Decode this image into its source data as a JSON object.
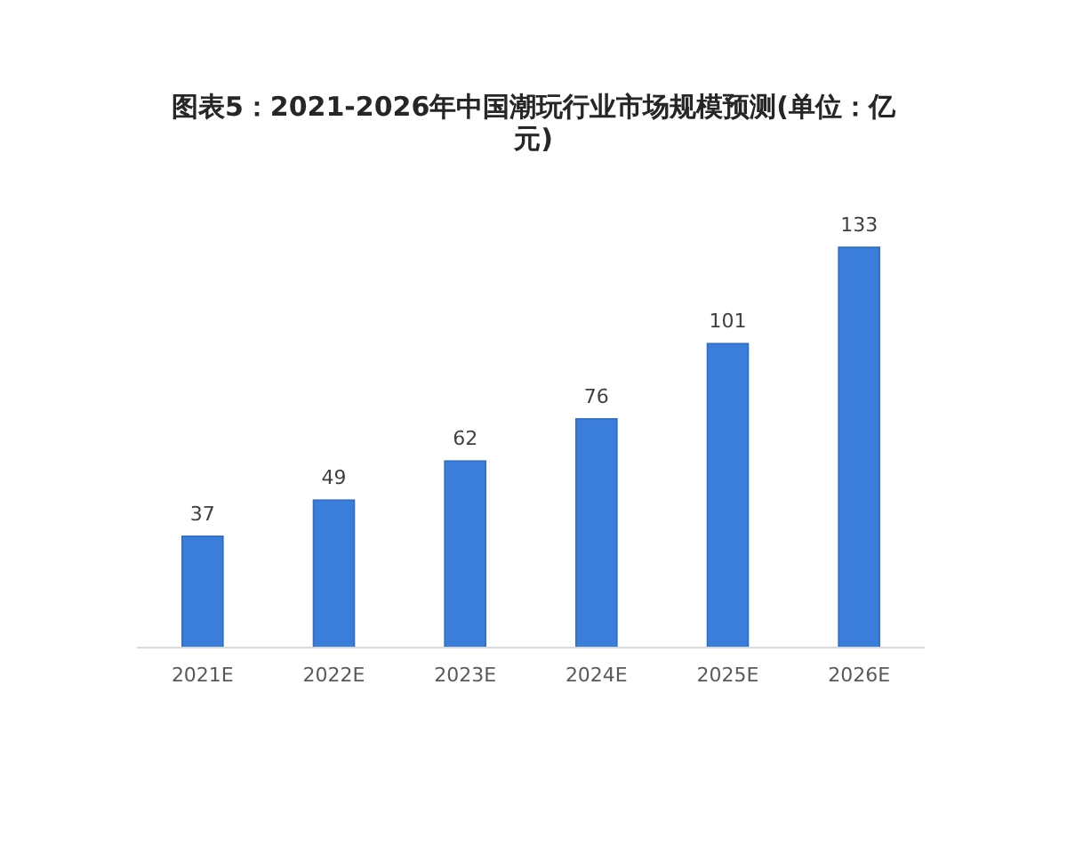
{
  "chart_data": {
    "type": "bar",
    "title": "图表5：2021-2026年中国潮玩行业市场规模预测(单位：亿元)",
    "categories": [
      "2021E",
      "2022E",
      "2023E",
      "2024E",
      "2025E",
      "2026E"
    ],
    "values": [
      37,
      49,
      62,
      76,
      101,
      133
    ],
    "color": "#3b7ddb",
    "data_labels": true
  }
}
